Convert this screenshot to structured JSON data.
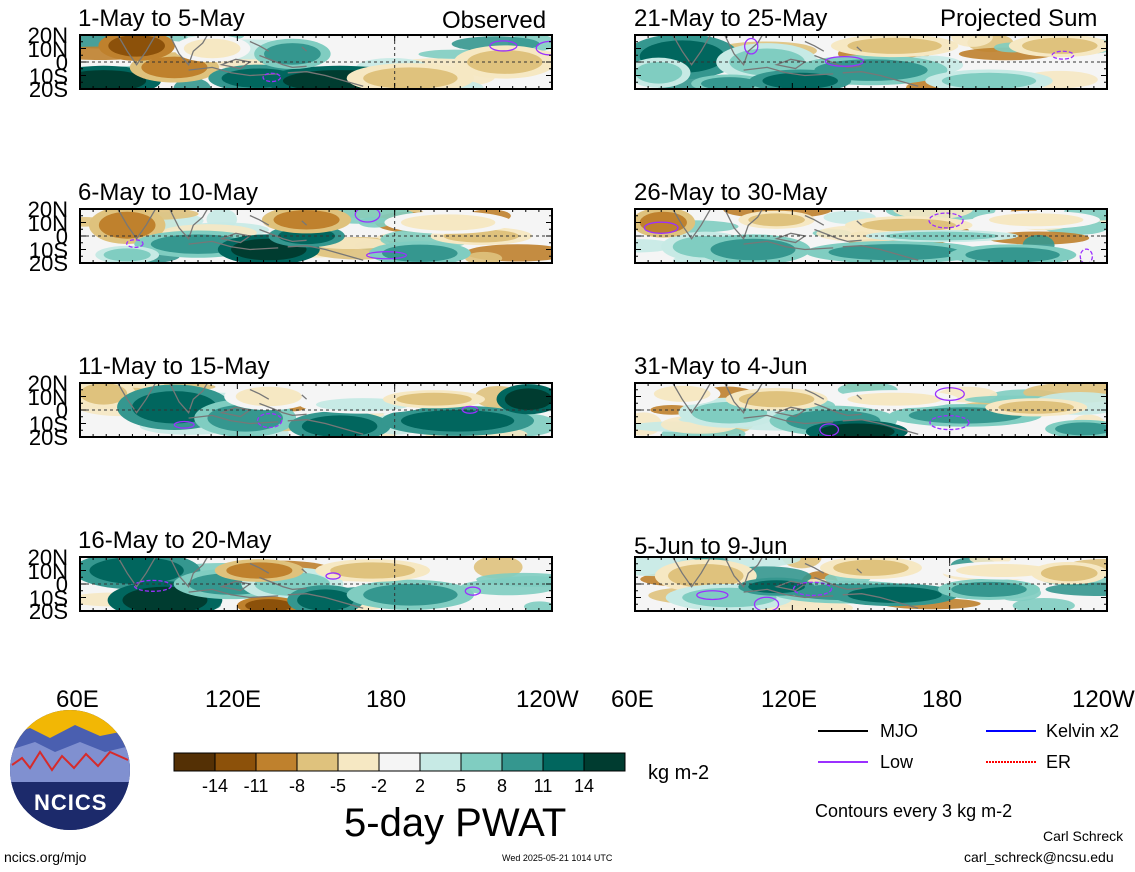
{
  "chart_data": {
    "type": "heatmap",
    "title": "5-day PWAT",
    "units": "kg m-2",
    "column_headers": {
      "left": "Observed",
      "right": "Projected Sum"
    },
    "lat_ticks": [
      "20N",
      "10N",
      "0",
      "10S",
      "20S"
    ],
    "lon_ticks": [
      "60E",
      "120E",
      "180",
      "120W"
    ],
    "lon_ticks_right": [
      "60E",
      "120E",
      "180",
      "120W"
    ],
    "panels": [
      {
        "label": "1-May to 5-May",
        "column": "Observed"
      },
      {
        "label": "6-May to 10-May",
        "column": "Observed"
      },
      {
        "label": "11-May to 15-May",
        "column": "Observed"
      },
      {
        "label": "16-May to 20-May",
        "column": "Observed"
      },
      {
        "label": "21-May to 25-May",
        "column": "Projected Sum"
      },
      {
        "label": "26-May to 30-May",
        "column": "Projected Sum"
      },
      {
        "label": "31-May to 4-Jun",
        "column": "Projected Sum"
      },
      {
        "label": "5-Jun to 9-Jun",
        "column": "Projected Sum"
      }
    ],
    "colorbar": {
      "labels": [
        "-14",
        "-11",
        "-8",
        "-5",
        "-2",
        "2",
        "5",
        "8",
        "11",
        "14"
      ],
      "colors": [
        "#543005",
        "#8c510a",
        "#bf812d",
        "#dfc27d",
        "#f6e8c3",
        "#f5f5f5",
        "#c7eae5",
        "#80cdc1",
        "#35978f",
        "#01665e",
        "#003c30"
      ]
    },
    "legend": [
      {
        "name": "MJO",
        "color": "#000000"
      },
      {
        "name": "Kelvin x2",
        "color": "#0000ff"
      },
      {
        "name": "Low",
        "color": "#9b30ff"
      },
      {
        "name": "ER",
        "color": "#ff0000"
      }
    ],
    "contour_note": "Contours every 3 kg m-2"
  },
  "footer": {
    "logo_text": "NCICS",
    "url": "ncics.org/mjo",
    "timestamp": "Wed 2025-05-21 1014 UTC",
    "author": "Carl Schreck",
    "email": "carl_schreck@ncsu.edu"
  }
}
